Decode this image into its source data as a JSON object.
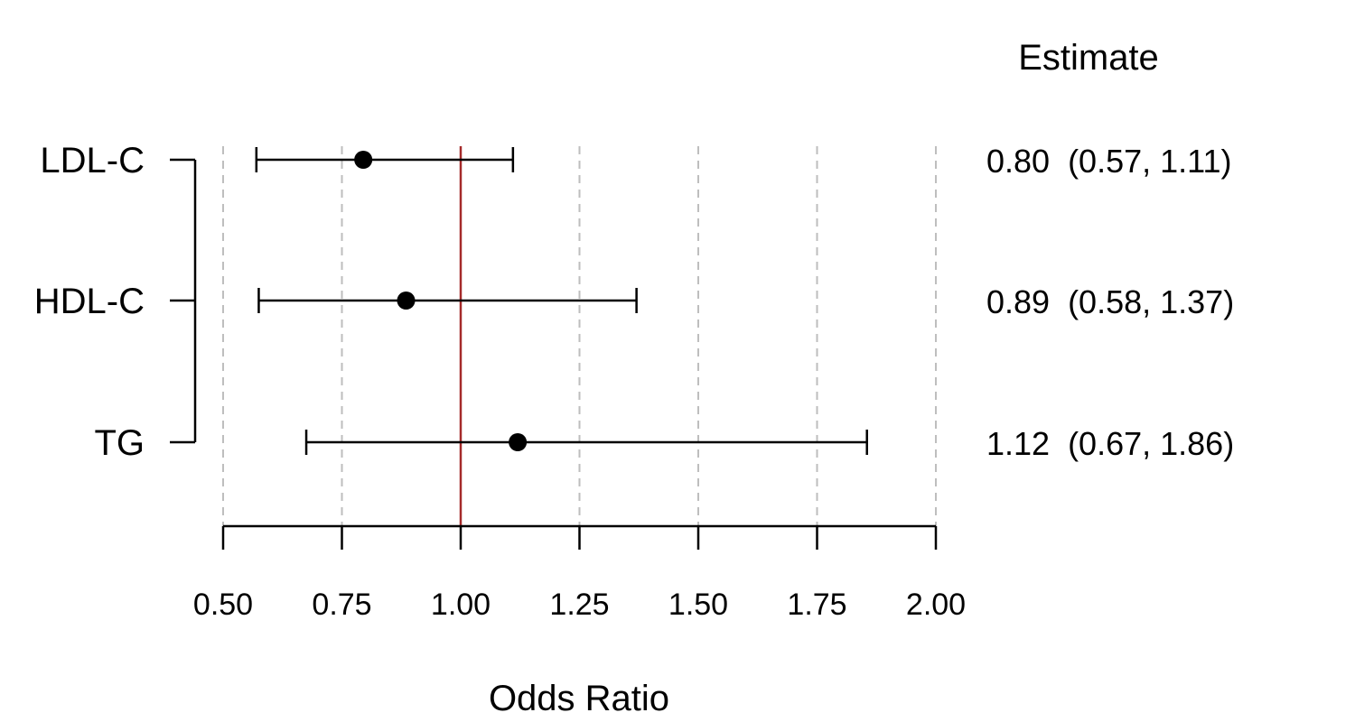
{
  "chart_data": {
    "type": "forest",
    "xlabel": "Odds Ratio",
    "estimate_header": "Estimate",
    "xlim": [
      0.5,
      2.0
    ],
    "ticks": [
      0.5,
      0.75,
      1.0,
      1.25,
      1.5,
      1.75,
      2.0
    ],
    "tick_labels": [
      "0.50",
      "0.75",
      "1.00",
      "1.25",
      "1.50",
      "1.75",
      "2.00"
    ],
    "reference_line": 1.0,
    "grid": "dashed vertical at ticks",
    "rows": [
      {
        "label": "LDL-C",
        "estimate": 0.795,
        "lower": 0.57,
        "upper": 1.11,
        "text": "0.80  (0.57, 1.11)"
      },
      {
        "label": "HDL-C",
        "estimate": 0.885,
        "lower": 0.575,
        "upper": 1.37,
        "text": "0.89  (0.58, 1.37)"
      },
      {
        "label": "TG",
        "estimate": 1.12,
        "lower": 0.675,
        "upper": 1.855,
        "text": "1.12  (0.67, 1.86)"
      }
    ],
    "colors": {
      "reference_line": "#a52a2a",
      "grid": "#bebebe",
      "marks": "#000000"
    }
  }
}
